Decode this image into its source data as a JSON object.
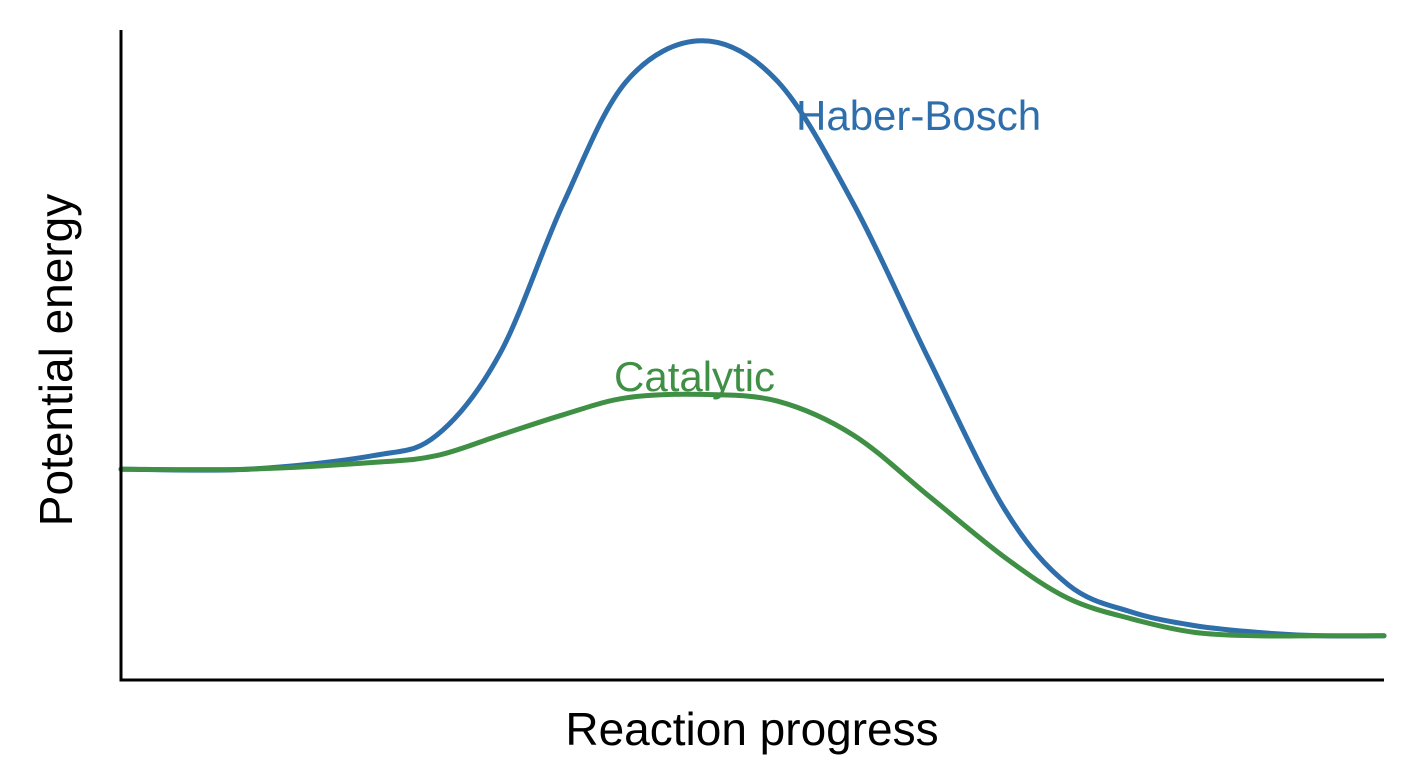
{
  "chart_data": {
    "type": "line",
    "title": "",
    "xlabel": "Reaction progress",
    "ylabel": "Potential energy",
    "xlim": [
      0,
      100
    ],
    "ylim": [
      0,
      100
    ],
    "grid": false,
    "legend": "none",
    "colors": {
      "axis": "#000000"
    },
    "series": [
      {
        "name": "Haber-Bosch",
        "color": "#2e6eab",
        "x": [
          0,
          10,
          20,
          25,
          30,
          35,
          40,
          46,
          52,
          58,
          64,
          70,
          75,
          80,
          85,
          90,
          95,
          100
        ],
        "y": [
          31,
          31,
          33,
          36,
          48,
          70,
          88,
          94,
          88,
          70,
          47,
          25,
          14,
          10,
          8,
          7,
          6.5,
          6.5
        ]
      },
      {
        "name": "Catalytic",
        "color": "#3f8f45",
        "x": [
          0,
          10,
          20,
          25,
          30,
          35,
          40,
          46,
          52,
          58,
          64,
          70,
          75,
          80,
          85,
          90,
          95,
          100
        ],
        "y": [
          31,
          31,
          32,
          33,
          36,
          39,
          41.5,
          42,
          41,
          36,
          27,
          18,
          12,
          9,
          7,
          6.5,
          6.5,
          6.5
        ]
      }
    ]
  }
}
